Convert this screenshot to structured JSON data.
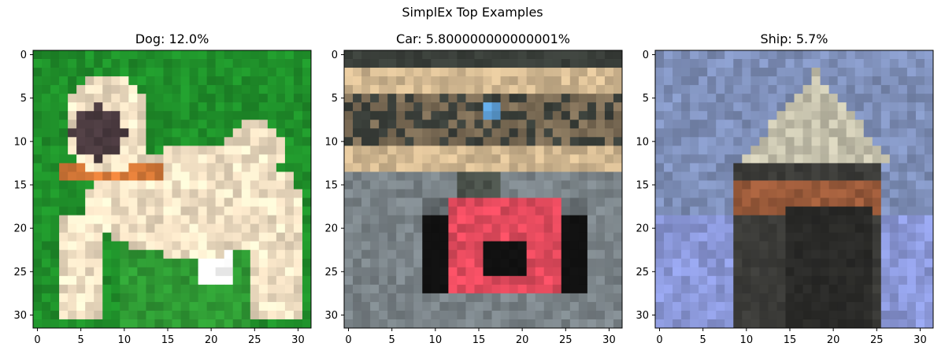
{
  "figure": {
    "title": "SimplEx Top Examples"
  },
  "panels": [
    {
      "title": "Dog: 12.0%",
      "image_icon": "pug-dog-image",
      "palette": [
        "#1f8f2a",
        "#f1dfc3",
        "#4a3a3f",
        "#d97a38",
        "#2f9a34",
        "#ffffff"
      ],
      "x_ticks": [
        "0",
        "5",
        "10",
        "15",
        "20",
        "25",
        "30"
      ],
      "y_ticks": [
        "0",
        "5",
        "10",
        "15",
        "20",
        "25",
        "30"
      ]
    },
    {
      "title": "Car: 5.800000000000001%",
      "image_icon": "race-car-image",
      "palette": [
        "#7a8388",
        "#d2b891",
        "#3a3f3a",
        "#e34a5d",
        "#111111",
        "#5ea0d8"
      ],
      "x_ticks": [
        "0",
        "5",
        "10",
        "15",
        "20",
        "25",
        "30"
      ],
      "y_ticks": [
        "0",
        "5",
        "10",
        "15",
        "20",
        "25",
        "30"
      ]
    },
    {
      "title": "Ship: 5.7%",
      "image_icon": "ship-image",
      "palette": [
        "#7e8fb9",
        "#c6c2ad",
        "#2a2a28",
        "#9a5a3a",
        "#8a97d8",
        "#d9d6c5"
      ],
      "x_ticks": [
        "0",
        "5",
        "10",
        "15",
        "20",
        "25",
        "30"
      ],
      "y_ticks": [
        "0",
        "5",
        "10",
        "15",
        "20",
        "25",
        "30"
      ]
    }
  ]
}
